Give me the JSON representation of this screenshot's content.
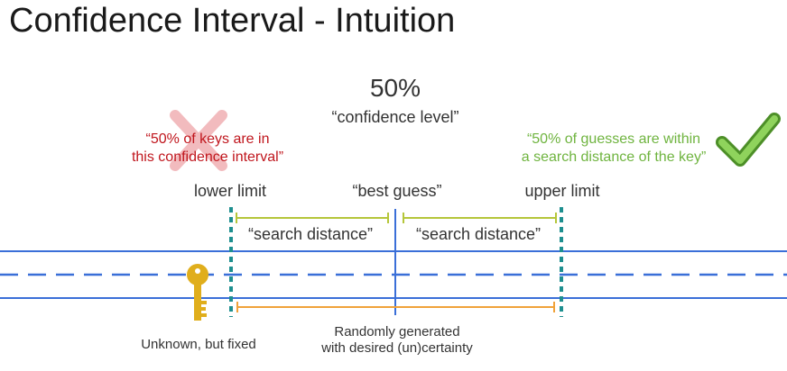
{
  "title": "Confidence Interval - Intuition",
  "confidence": {
    "percent": "50%",
    "label": "“confidence level”"
  },
  "wrong_statement": {
    "line1": "“50% of keys are in",
    "line2": "this confidence interval”",
    "color": "#c0161d",
    "icon": "cross-icon"
  },
  "right_statement": {
    "line1": "“50% of guesses are within",
    "line2": "a search distance of the key”",
    "color": "#6fb43f",
    "icon": "checkmark-icon"
  },
  "limits": {
    "lower": "lower limit",
    "best": "“best guess”",
    "upper": "upper limit"
  },
  "search_distance": {
    "left": "“search distance”",
    "right": "“search distance”",
    "color": "#b5c63a"
  },
  "key": {
    "icon": "key-icon",
    "caption": "Unknown, but fixed",
    "color": "#e0ae1c"
  },
  "random": {
    "line1": "Randomly generated",
    "line2": "with desired (un)certainty",
    "color": "#f0a23a"
  },
  "colors": {
    "axis": "#3a6fd8",
    "limit": "#1e8f8f"
  }
}
